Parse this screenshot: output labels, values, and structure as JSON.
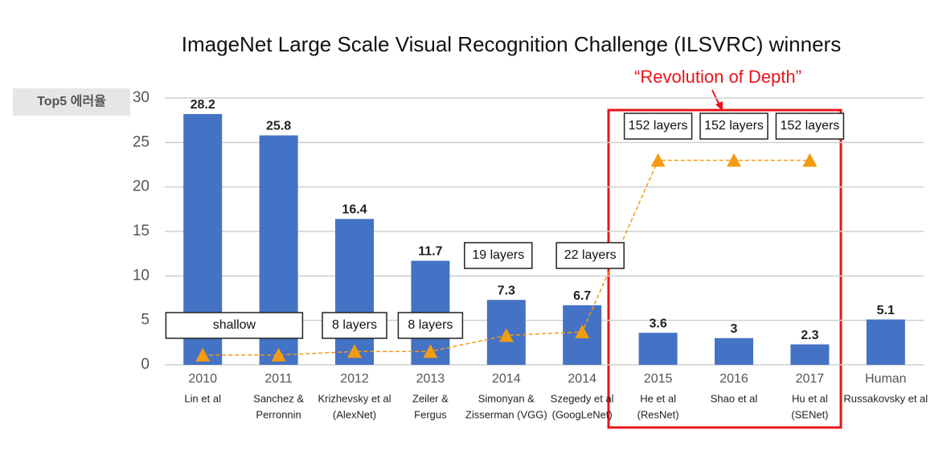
{
  "chart_data": {
    "type": "bar",
    "title": "ImageNet Large Scale Visual Recognition Challenge (ILSVRC) winners",
    "y_label": "Top5 에러율",
    "categories": [
      "2010",
      "2011",
      "2012",
      "2013",
      "2014",
      "2014",
      "2015",
      "2016",
      "2017",
      "Human"
    ],
    "category_notes": [
      [
        "Lin et al"
      ],
      [
        "Sanchez &",
        "Perronnin"
      ],
      [
        "Krizhevsky et al",
        "(AlexNet)"
      ],
      [
        "Zeiler &",
        "Fergus"
      ],
      [
        "Simonyan &",
        "Zisserman (VGG)"
      ],
      [
        "Szegedy et al",
        "(GoogLeNet)"
      ],
      [
        "He et al",
        "(ResNet)"
      ],
      [
        "Shao et al"
      ],
      [
        "Hu et al",
        "(SENet)"
      ],
      [
        "Russakovsky et al"
      ]
    ],
    "values": [
      28.2,
      25.8,
      16.4,
      11.7,
      7.3,
      6.7,
      3.6,
      3,
      2.3,
      5.1
    ],
    "color": "#4472c4",
    "depth_values": [
      1.1,
      1.1,
      1.5,
      1.5,
      3.3,
      3.7,
      23,
      23,
      23,
      null
    ],
    "depth_color": "#f39c12",
    "layer_labels": [
      "shallow",
      null,
      "8 layers",
      "8 layers",
      "19 layers",
      "22 layers",
      "152 layers",
      "152 layers",
      "152 layers",
      null
    ],
    "annotation": "“Revolution of Depth”",
    "ylim": [
      0,
      30
    ],
    "yticks": [
      0,
      5,
      10,
      15,
      20,
      25,
      30
    ],
    "grid": true
  }
}
